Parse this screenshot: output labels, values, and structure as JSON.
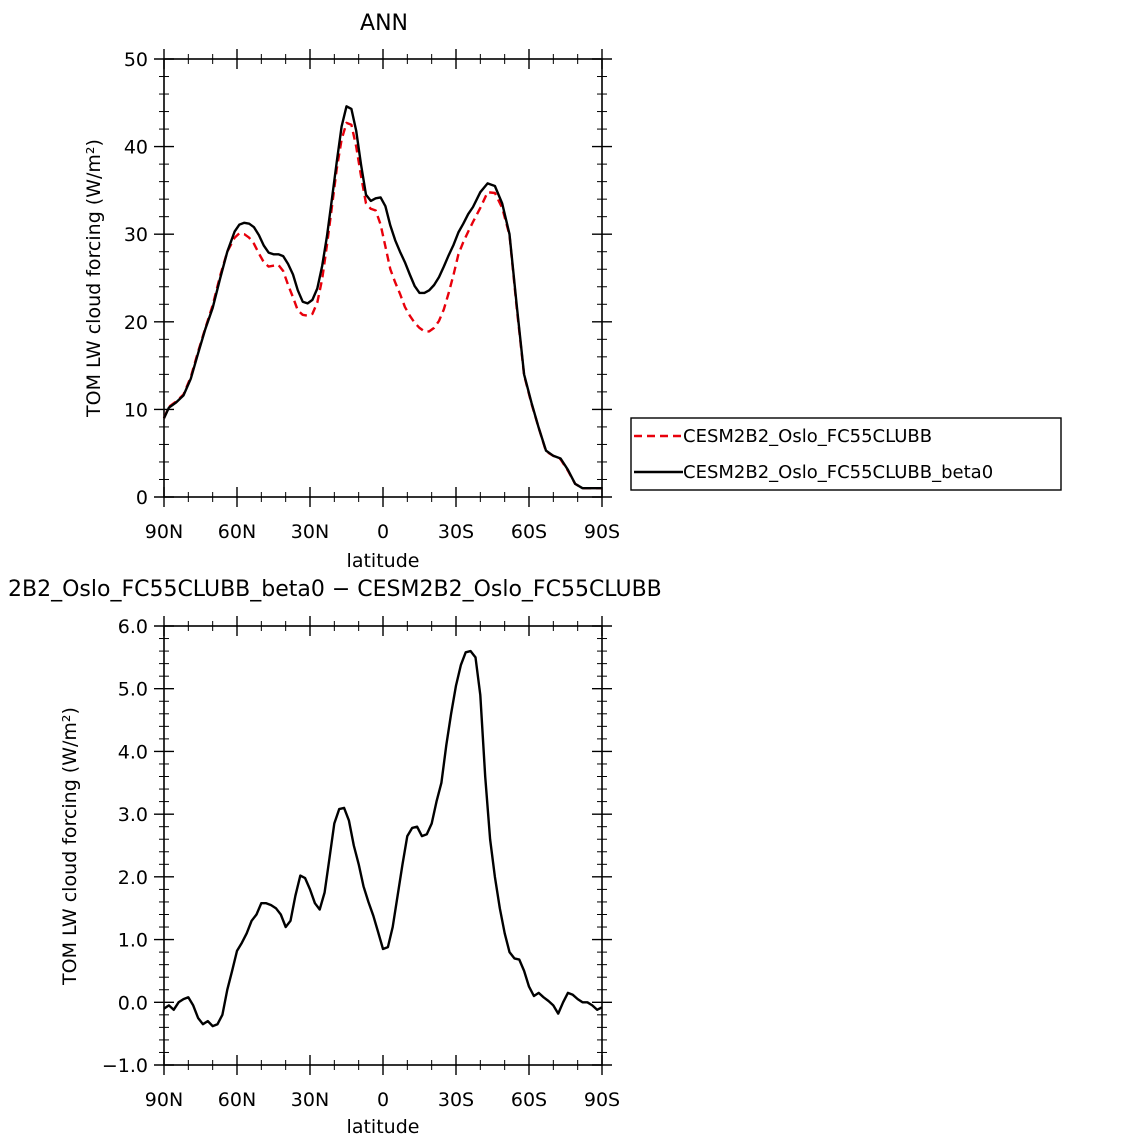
{
  "chart_data": [
    {
      "type": "line",
      "title": "ANN",
      "xlabel": "latitude",
      "ylabel": "TOM LW cloud forcing (W/m²)",
      "xlim": [
        90,
        -90
      ],
      "ylim": [
        0,
        50
      ],
      "xticks": [
        {
          "value": 90,
          "label": "90N"
        },
        {
          "value": 60,
          "label": "60N"
        },
        {
          "value": 30,
          "label": "30N"
        },
        {
          "value": 0,
          "label": "0"
        },
        {
          "value": -30,
          "label": "30S"
        },
        {
          "value": -60,
          "label": "60S"
        },
        {
          "value": -90,
          "label": "90S"
        }
      ],
      "yticks": [
        {
          "value": 0,
          "label": "0"
        },
        {
          "value": 10,
          "label": "10"
        },
        {
          "value": 20,
          "label": "20"
        },
        {
          "value": 30,
          "label": "30"
        },
        {
          "value": 40,
          "label": "40"
        },
        {
          "value": 50,
          "label": "50"
        }
      ],
      "legend_position": "right",
      "series": [
        {
          "name": "CESM2B2_Oslo_FC55CLUBB",
          "color": "#e8000b",
          "dash": "dashed",
          "x": [
            90,
            88,
            85,
            82,
            79,
            76,
            73,
            70,
            67,
            64,
            61,
            59,
            57,
            55,
            53,
            51,
            49,
            47,
            45,
            43,
            41,
            39,
            37,
            35,
            33,
            31,
            29,
            27,
            25,
            23,
            21,
            19,
            17,
            15,
            13,
            11,
            9,
            7,
            5,
            3,
            1,
            -1,
            -3,
            -5,
            -7,
            -9,
            -11,
            -13,
            -15,
            -17,
            -19,
            -21,
            -23,
            -25,
            -27,
            -29,
            -31,
            -33,
            -35,
            -37,
            -40,
            -43,
            -46,
            -49,
            -52,
            -55,
            -58,
            -61,
            -64,
            -67,
            -70,
            -73,
            -76,
            -79,
            -82,
            -85,
            -88,
            -90
          ],
          "y": [
            9.0,
            10.3,
            10.9,
            11.7,
            13.7,
            16.6,
            19.3,
            21.9,
            25.2,
            28.0,
            29.6,
            30.1,
            30.0,
            29.6,
            28.9,
            27.8,
            26.8,
            26.3,
            26.4,
            26.5,
            25.8,
            24.2,
            22.8,
            21.3,
            20.8,
            20.7,
            20.9,
            22.2,
            24.9,
            28.8,
            33.1,
            37.5,
            40.8,
            42.7,
            42.5,
            40.0,
            36.6,
            33.5,
            32.9,
            32.7,
            31.1,
            28.6,
            26.0,
            24.5,
            23.2,
            21.7,
            20.7,
            19.9,
            19.3,
            18.9,
            18.9,
            19.3,
            20.1,
            21.4,
            23.3,
            25.4,
            27.7,
            29.1,
            30.3,
            31.4,
            33.0,
            34.8,
            34.7,
            33.0,
            29.9,
            21.5,
            13.9,
            10.7,
            7.9,
            5.2,
            4.7,
            4.3,
            3.0,
            1.5,
            1.0,
            1.0,
            1.0,
            1.0
          ]
        },
        {
          "name": "CESM2B2_Oslo_FC55CLUBB_beta0",
          "color": "#000000",
          "dash": "solid",
          "x": [
            90,
            88,
            85,
            82,
            79,
            76,
            73,
            70,
            67,
            64,
            61,
            59,
            57,
            55,
            53,
            51,
            49,
            47,
            45,
            43,
            41,
            39,
            37,
            35,
            33,
            31,
            29,
            27,
            25,
            23,
            21,
            19,
            17,
            15,
            13,
            11,
            9,
            7,
            5,
            3,
            1,
            -1,
            -3,
            -5,
            -7,
            -9,
            -11,
            -13,
            -15,
            -17,
            -19,
            -21,
            -23,
            -25,
            -27,
            -29,
            -31,
            -33,
            -35,
            -37,
            -40,
            -43,
            -46,
            -49,
            -52,
            -55,
            -58,
            -61,
            -64,
            -67,
            -70,
            -73,
            -76,
            -79,
            -82,
            -85,
            -88,
            -90
          ],
          "y": [
            9.0,
            10.2,
            10.8,
            11.6,
            13.5,
            16.4,
            19.2,
            21.6,
            24.9,
            28.0,
            30.3,
            31.1,
            31.3,
            31.2,
            30.8,
            29.9,
            28.7,
            27.9,
            27.7,
            27.7,
            27.5,
            26.6,
            25.4,
            23.6,
            22.3,
            22.1,
            22.5,
            23.8,
            26.4,
            29.8,
            34.0,
            38.3,
            42.3,
            44.6,
            44.3,
            41.8,
            37.9,
            34.5,
            33.8,
            34.1,
            34.2,
            33.2,
            31.0,
            29.3,
            28.0,
            26.8,
            25.4,
            24.1,
            23.3,
            23.3,
            23.6,
            24.2,
            25.1,
            26.3,
            27.6,
            28.8,
            30.2,
            31.2,
            32.3,
            33.1,
            34.8,
            35.8,
            35.5,
            33.5,
            30.0,
            21.8,
            14.0,
            10.8,
            7.9,
            5.3,
            4.7,
            4.4,
            3.1,
            1.5,
            1.0,
            1.0,
            1.0,
            1.0
          ]
        }
      ]
    },
    {
      "type": "line",
      "title": "2B2_Oslo_FC55CLUBB_beta0 − CESM2B2_Oslo_FC55CLUBB",
      "xlabel": "latitude",
      "ylabel": "TOM LW cloud forcing (W/m²)",
      "xlim": [
        90,
        -90
      ],
      "ylim": [
        -1.0,
        6.0
      ],
      "xticks": [
        {
          "value": 90,
          "label": "90N"
        },
        {
          "value": 60,
          "label": "60N"
        },
        {
          "value": 30,
          "label": "30N"
        },
        {
          "value": 0,
          "label": "0"
        },
        {
          "value": -30,
          "label": "30S"
        },
        {
          "value": -60,
          "label": "60S"
        },
        {
          "value": -90,
          "label": "90S"
        }
      ],
      "yticks": [
        {
          "value": -1.0,
          "label": "−1.0"
        },
        {
          "value": 0.0,
          "label": "0.0"
        },
        {
          "value": 1.0,
          "label": "1.0"
        },
        {
          "value": 2.0,
          "label": "2.0"
        },
        {
          "value": 3.0,
          "label": "3.0"
        },
        {
          "value": 4.0,
          "label": "4.0"
        },
        {
          "value": 5.0,
          "label": "5.0"
        },
        {
          "value": 6.0,
          "label": "6.0"
        }
      ],
      "series": [
        {
          "color": "#000000",
          "dash": "solid",
          "x": [
            90,
            88,
            86,
            84,
            82,
            80,
            78,
            76,
            74,
            72,
            70,
            68,
            66,
            64,
            62,
            60,
            58,
            56,
            54,
            52,
            50,
            48,
            46,
            44,
            42,
            40,
            38,
            36,
            34,
            32,
            30,
            28,
            26,
            24,
            22,
            20,
            18,
            16,
            14,
            12,
            10,
            8,
            6,
            4,
            2,
            0,
            -2,
            -4,
            -6,
            -8,
            -10,
            -12,
            -14,
            -16,
            -18,
            -20,
            -22,
            -24,
            -26,
            -28,
            -30,
            -32,
            -34,
            -36,
            -38,
            -40,
            -42,
            -44,
            -46,
            -48,
            -50,
            -52,
            -54,
            -56,
            -58,
            -60,
            -62,
            -64,
            -66,
            -68,
            -70,
            -72,
            -74,
            -76,
            -78,
            -80,
            -82,
            -84,
            -86,
            -88,
            -90
          ],
          "y": [
            -0.1,
            -0.05,
            -0.12,
            0.0,
            0.05,
            0.08,
            -0.05,
            -0.25,
            -0.35,
            -0.3,
            -0.38,
            -0.35,
            -0.2,
            0.2,
            0.5,
            0.82,
            0.95,
            1.1,
            1.3,
            1.4,
            1.58,
            1.58,
            1.55,
            1.5,
            1.4,
            1.2,
            1.3,
            1.7,
            2.02,
            1.98,
            1.8,
            1.58,
            1.48,
            1.75,
            2.3,
            2.85,
            3.08,
            3.1,
            2.9,
            2.5,
            2.2,
            1.85,
            1.6,
            1.38,
            1.12,
            0.85,
            0.88,
            1.2,
            1.7,
            2.2,
            2.65,
            2.78,
            2.8,
            2.65,
            2.68,
            2.85,
            3.2,
            3.5,
            4.1,
            4.6,
            5.05,
            5.38,
            5.58,
            5.6,
            5.5,
            4.9,
            3.6,
            2.6,
            2.0,
            1.5,
            1.1,
            0.8,
            0.7,
            0.68,
            0.5,
            0.25,
            0.1,
            0.15,
            0.08,
            0.02,
            -0.05,
            -0.18,
            0.0,
            0.15,
            0.12,
            0.05,
            0.0,
            0.0,
            -0.05,
            -0.12,
            -0.08
          ]
        }
      ]
    }
  ]
}
